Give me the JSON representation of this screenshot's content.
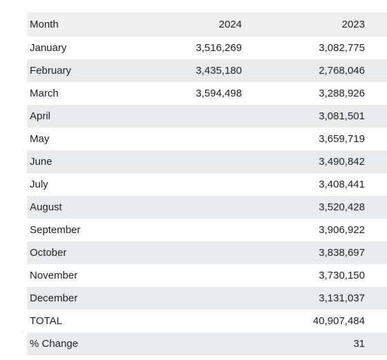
{
  "table": {
    "headers": [
      "Month",
      "2024",
      "2023"
    ],
    "rows": [
      [
        "January",
        "3,516,269",
        "3,082,775"
      ],
      [
        "February",
        "3,435,180",
        "2,768,046"
      ],
      [
        "March",
        "3,594,498",
        "3,288,926"
      ],
      [
        "April",
        "",
        "3,081,501"
      ],
      [
        "May",
        "",
        "3,659,719"
      ],
      [
        "June",
        "",
        "3,490,842"
      ],
      [
        "July",
        "",
        "3,408,441"
      ],
      [
        "August",
        "",
        "3,520,428"
      ],
      [
        "September",
        "",
        "3,906,922"
      ],
      [
        "October",
        "",
        "3,838,697"
      ],
      [
        "November",
        "",
        "3,730,150"
      ],
      [
        "December",
        "",
        "3,131,037"
      ],
      [
        "TOTAL",
        "",
        "40,907,484"
      ],
      [
        "% Change",
        "",
        "31"
      ]
    ]
  }
}
